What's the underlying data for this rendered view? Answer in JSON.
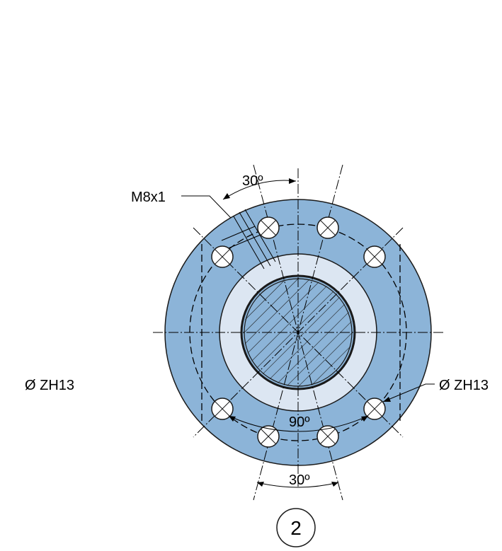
{
  "labels": {
    "thread": "M8x1",
    "angle_top": "30º",
    "angle_bottom": "30º",
    "angle_mid": "90º",
    "hole_left": "Ø ZH13",
    "hole_right": "Ø ZH13",
    "view_number": "2"
  },
  "colors": {
    "flange": "#8cb4d8",
    "ring": "#dce6f2",
    "shaft": "#8cb4d8",
    "outline": "#1a1a1a"
  }
}
